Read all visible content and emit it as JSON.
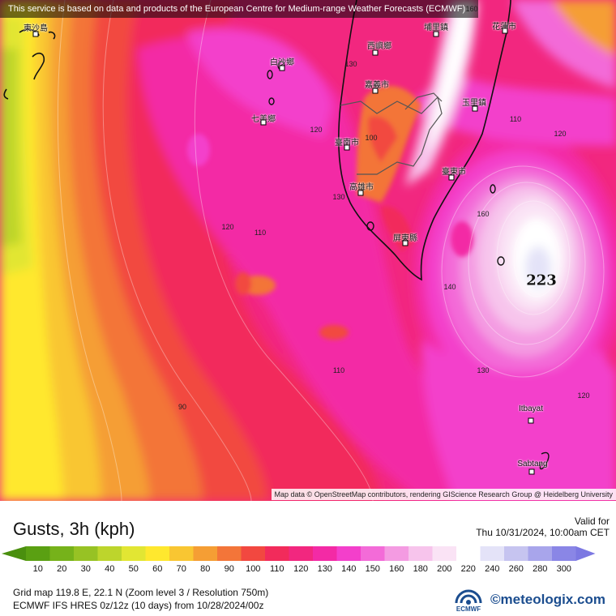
{
  "map": {
    "banner": "This service is based on data and products of the European Centre for Medium-range Weather Forecasts (ECMWF)",
    "attribution": "Map data © OpenStreetMap contributors, rendering GIScience Research Group @ Heidelberg University",
    "max_value": "223",
    "places": [
      "東沙島",
      "西嶼鄉",
      "埔里鎮",
      "花蓮市",
      "白沙鄉",
      "嘉義市",
      "玉里鎮",
      "七美鄉",
      "臺南市",
      "臺東市",
      "高雄市",
      "屏東縣",
      "Itbayat",
      "Sabtang"
    ],
    "contour_labels": [
      "160",
      "130",
      "120",
      "100",
      "110",
      "120",
      "130",
      "120",
      "110",
      "160",
      "140",
      "110",
      "130",
      "120",
      "90"
    ]
  },
  "legend": {
    "title": "Gusts, 3h (kph)",
    "valid_label": "Valid for",
    "valid_time": "Thu 10/31/2024, 10:00am CET",
    "scale": [
      {
        "v": "10",
        "c": "#5aa012"
      },
      {
        "v": "20",
        "c": "#76b21a"
      },
      {
        "v": "30",
        "c": "#97c224"
      },
      {
        "v": "40",
        "c": "#bdd52c"
      },
      {
        "v": "50",
        "c": "#e2e633"
      },
      {
        "v": "60",
        "c": "#ffe82e"
      },
      {
        "v": "70",
        "c": "#f9c632"
      },
      {
        "v": "80",
        "c": "#f59e34"
      },
      {
        "v": "90",
        "c": "#f37539"
      },
      {
        "v": "100",
        "c": "#f24840"
      },
      {
        "v": "110",
        "c": "#f22b5b"
      },
      {
        "v": "120",
        "c": "#f2277f"
      },
      {
        "v": "130",
        "c": "#f32aa5"
      },
      {
        "v": "140",
        "c": "#f33fcb"
      },
      {
        "v": "150",
        "c": "#f36bd8"
      },
      {
        "v": "160",
        "c": "#f49be2"
      },
      {
        "v": "180",
        "c": "#f7c4ec"
      },
      {
        "v": "200",
        "c": "#fae3f5"
      },
      {
        "v": "220",
        "c": "#ffffff"
      },
      {
        "v": "240",
        "c": "#e4e3f8"
      },
      {
        "v": "260",
        "c": "#c6c4f0"
      },
      {
        "v": "280",
        "c": "#a8a5eb"
      },
      {
        "v": "300",
        "c": "#8a86e6"
      }
    ],
    "grid_info": "Grid map 119.8 E, 22.1 N (Zoom level 3 / Resolution 750m)",
    "model_info": "ECMWF IFS HRES 0z/12z (10 days)  from  10/28/2024/00z",
    "ecmwf_logo": "ECMWF",
    "brand": "©meteologix.com"
  }
}
